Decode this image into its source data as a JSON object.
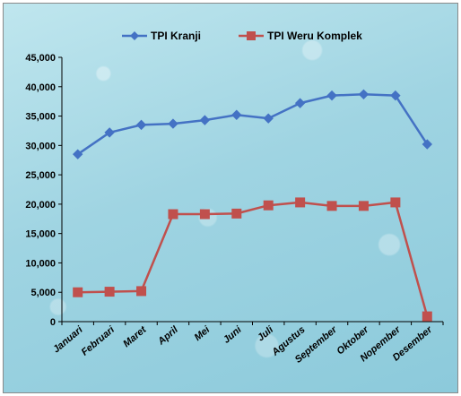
{
  "chart_data": {
    "type": "line",
    "categories": [
      "Januari",
      "Februari",
      "Maret",
      "April",
      "Mei",
      "Juni",
      "Juli",
      "Agustus",
      "September",
      "Oktober",
      "Nopember",
      "Desember"
    ],
    "series": [
      {
        "name": "TPI Kranji",
        "values": [
          28500,
          32200,
          33500,
          33700,
          34300,
          35200,
          34600,
          37200,
          38500,
          38700,
          38500,
          30200
        ],
        "color": "#4472c4",
        "marker": "diamond"
      },
      {
        "name": "TPI Weru Komplek",
        "values": [
          5000,
          5100,
          5200,
          18300,
          18300,
          18400,
          19800,
          20300,
          19700,
          19700,
          20300,
          900
        ],
        "color": "#c0504d",
        "marker": "square"
      }
    ],
    "yticks": [
      "0",
      "5,000",
      "10,000",
      "15,000",
      "20,000",
      "25,000",
      "30,000",
      "35,000",
      "40,000",
      "45,000"
    ],
    "ylim": [
      0,
      45000
    ],
    "ystep": 5000,
    "legend_position": "top",
    "grid": false
  }
}
